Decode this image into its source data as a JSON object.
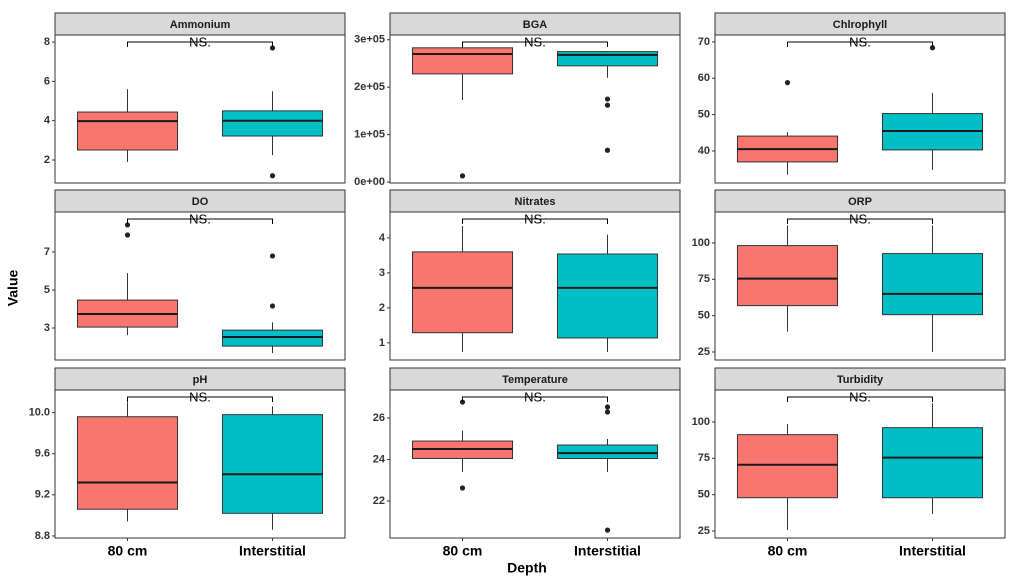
{
  "x_label": "Depth",
  "y_label": "Value",
  "categories": [
    "80 cm",
    "Interstitial"
  ],
  "colors": [
    "#F8766D",
    "#00BFC4"
  ],
  "chart_data": [
    {
      "type": "box",
      "title": "Ammonium",
      "annotation": "NS.",
      "ylim": [
        0.83,
        8.36
      ],
      "yticks": [
        2,
        4,
        6,
        8
      ],
      "boxes": [
        {
          "min": 1.9,
          "q1": 2.51,
          "median": 3.98,
          "q3": 4.44,
          "max": 5.6,
          "outliers": []
        },
        {
          "min": 2.25,
          "q1": 3.22,
          "median": 4.0,
          "q3": 4.5,
          "max": 5.5,
          "outliers": [
            7.7,
            1.2
          ]
        }
      ]
    },
    {
      "type": "box",
      "title": "BGA",
      "annotation": "NS.",
      "ylim": [
        -2000,
        310000
      ],
      "yticks": [
        {
          "value": 0,
          "label": "0e+00"
        },
        {
          "value": 100000,
          "label": "1e+05"
        },
        {
          "value": 200000,
          "label": "2e+05"
        },
        {
          "value": 300000,
          "label": "3e+05"
        }
      ],
      "boxes": [
        {
          "min": 173000,
          "q1": 228000,
          "median": 270000,
          "q3": 283000,
          "max": 285000,
          "outliers": [
            13000
          ]
        },
        {
          "min": 220000,
          "q1": 245000,
          "median": 268000,
          "q3": 275000,
          "max": 276000,
          "outliers": [
            175000,
            162000,
            67000
          ]
        }
      ]
    },
    {
      "type": "box",
      "title": "Chlrophyll",
      "annotation": "NS.",
      "ylim": [
        31.2,
        71.9
      ],
      "yticks": [
        40,
        50,
        60,
        70
      ],
      "boxes": [
        {
          "min": 33.5,
          "q1": 37,
          "median": 40.5,
          "q3": 44.1,
          "max": 45.2,
          "outliers": [
            58.8
          ]
        },
        {
          "min": 34.8,
          "q1": 40.3,
          "median": 45.5,
          "q3": 50.3,
          "max": 56,
          "outliers": [
            68.4
          ]
        }
      ]
    },
    {
      "type": "box",
      "title": "DO",
      "annotation": "NS.",
      "ylim": [
        1.32,
        9.1
      ],
      "yticks": [
        3,
        5,
        7
      ],
      "boxes": [
        {
          "min": 2.63,
          "q1": 3.05,
          "median": 3.74,
          "q3": 4.47,
          "max": 5.89,
          "outliers": [
            8.42,
            7.89
          ]
        },
        {
          "min": 1.68,
          "q1": 2.05,
          "median": 2.53,
          "q3": 2.89,
          "max": 3.3,
          "outliers": [
            6.79,
            4.16
          ]
        }
      ]
    },
    {
      "type": "box",
      "title": "Nitrates",
      "annotation": "NS.",
      "ylim": [
        0.51,
        4.74
      ],
      "yticks": [
        1,
        2,
        3,
        4
      ],
      "boxes": [
        {
          "min": 0.74,
          "q1": 1.29,
          "median": 2.57,
          "q3": 3.6,
          "max": 4.34,
          "outliers": []
        },
        {
          "min": 0.74,
          "q1": 1.14,
          "median": 2.57,
          "q3": 3.54,
          "max": 4.09,
          "outliers": []
        }
      ]
    },
    {
      "type": "box",
      "title": "ORP",
      "annotation": "NS.",
      "ylim": [
        19.5,
        121.3
      ],
      "yticks": [
        25,
        50,
        75,
        100
      ],
      "boxes": [
        {
          "min": 39,
          "q1": 56.9,
          "median": 75.5,
          "q3": 98.2,
          "max": 112,
          "outliers": []
        },
        {
          "min": 25,
          "q1": 50.7,
          "median": 65,
          "q3": 92.7,
          "max": 112,
          "outliers": []
        }
      ]
    },
    {
      "type": "box",
      "title": "pH",
      "annotation": "NS.",
      "ylim": [
        8.78,
        10.22
      ],
      "yticks": [
        8.8,
        9.2,
        9.6,
        {
          "value": 10,
          "label": "10.0"
        }
      ],
      "boxes": [
        {
          "min": 8.94,
          "q1": 9.06,
          "median": 9.32,
          "q3": 9.96,
          "max": 10.1,
          "outliers": []
        },
        {
          "min": 8.86,
          "q1": 9.02,
          "median": 9.4,
          "q3": 9.98,
          "max": 10.06,
          "outliers": []
        }
      ]
    },
    {
      "type": "box",
      "title": "Temperature",
      "annotation": "NS.",
      "ylim": [
        20.22,
        27.35
      ],
      "yticks": [
        22,
        24,
        26
      ],
      "boxes": [
        {
          "min": 23.4,
          "q1": 24.05,
          "median": 24.51,
          "q3": 24.89,
          "max": 25.4,
          "outliers": [
            26.77,
            22.63
          ]
        },
        {
          "min": 23.4,
          "q1": 24.05,
          "median": 24.31,
          "q3": 24.7,
          "max": 24.99,
          "outliers": [
            26.53,
            26.29,
            20.6
          ]
        }
      ]
    },
    {
      "type": "box",
      "title": "Turbidity",
      "annotation": "NS.",
      "ylim": [
        20.2,
        122
      ],
      "yticks": [
        25,
        50,
        75,
        100
      ],
      "boxes": [
        {
          "min": 25.7,
          "q1": 47.9,
          "median": 70.6,
          "q3": 91.3,
          "max": 98.6,
          "outliers": []
        },
        {
          "min": 36.7,
          "q1": 47.9,
          "median": 75.5,
          "q3": 96.1,
          "max": 113,
          "outliers": []
        }
      ]
    }
  ]
}
